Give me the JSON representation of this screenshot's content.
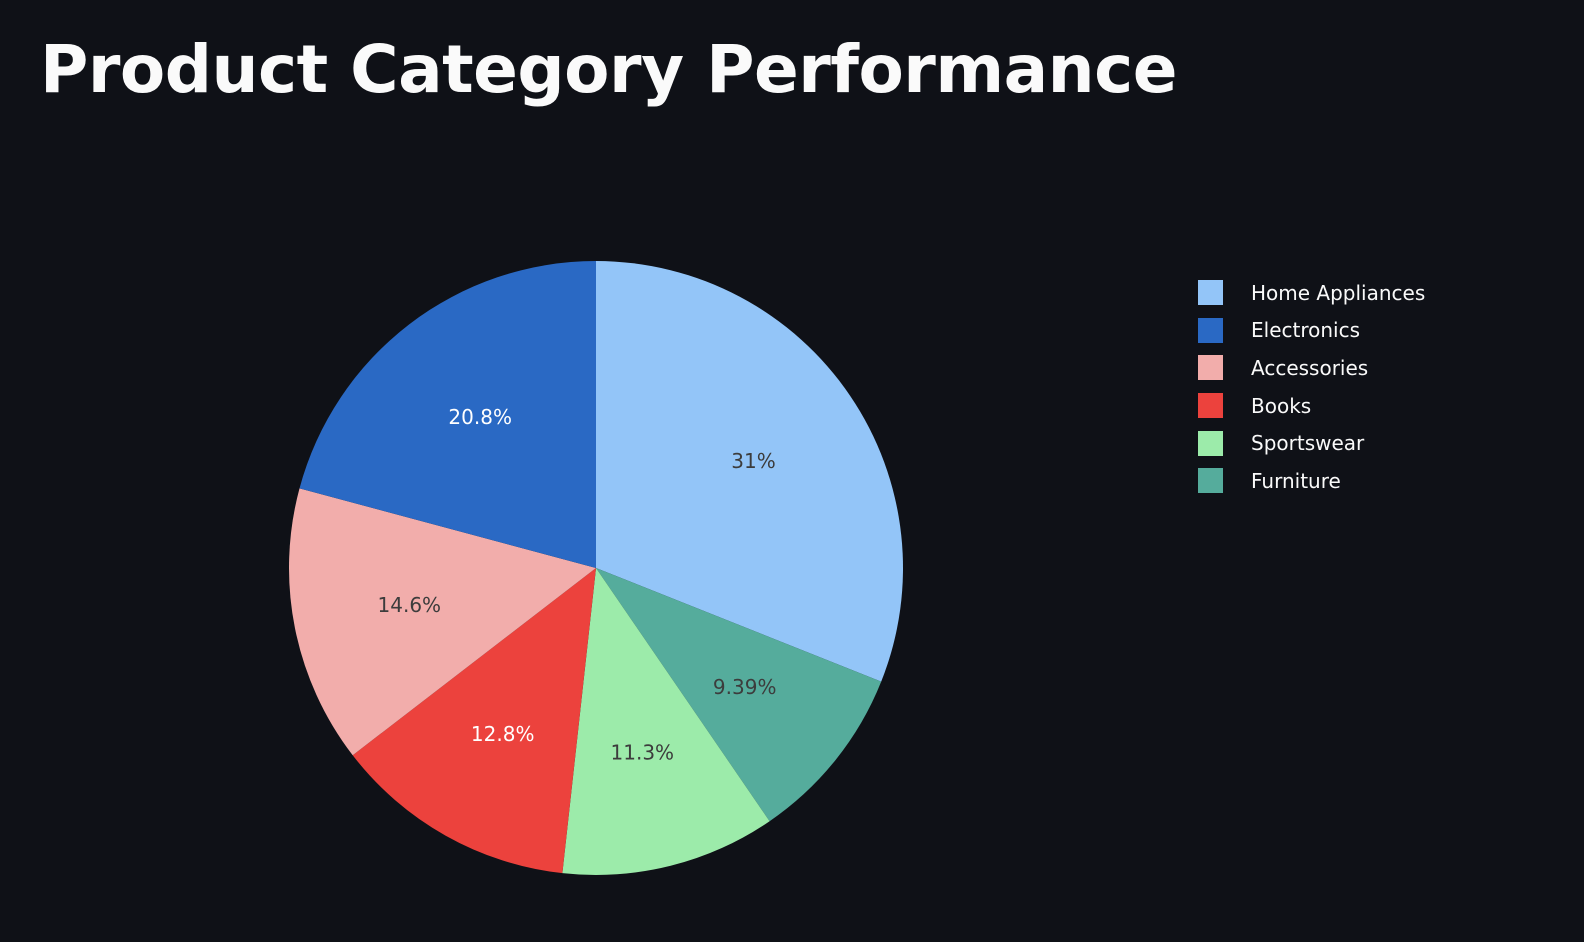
{
  "page": {
    "title": "Product Category Performance"
  },
  "colors": {
    "background": "#0f1117",
    "text": "#fafafa"
  },
  "chart_data": {
    "type": "pie",
    "title": "",
    "direction": "clockwise",
    "start_angle_deg": 90,
    "grid": false,
    "legend_position": "right",
    "categories": [
      "Home Appliances",
      "Electronics",
      "Accessories",
      "Books",
      "Sportswear",
      "Furniture"
    ],
    "values": [
      31,
      20.8,
      14.6,
      12.8,
      11.3,
      9.39
    ],
    "slice_order": [
      "Home Appliances",
      "Furniture",
      "Sportswear",
      "Books",
      "Accessories",
      "Electronics"
    ],
    "labels": [
      "31%",
      "20.8%",
      "14.6%",
      "12.8%",
      "11.3%",
      "9.39%"
    ],
    "colors": [
      "#93c5f8",
      "#2a69c4",
      "#f2adab",
      "#ec423d",
      "#9cebaa",
      "#55ac9c"
    ],
    "label_colors": [
      "#3c3c3c",
      "#ffffff",
      "#3c3c3c",
      "#ffffff",
      "#3c3c3c",
      "#3c3c3c"
    ]
  }
}
